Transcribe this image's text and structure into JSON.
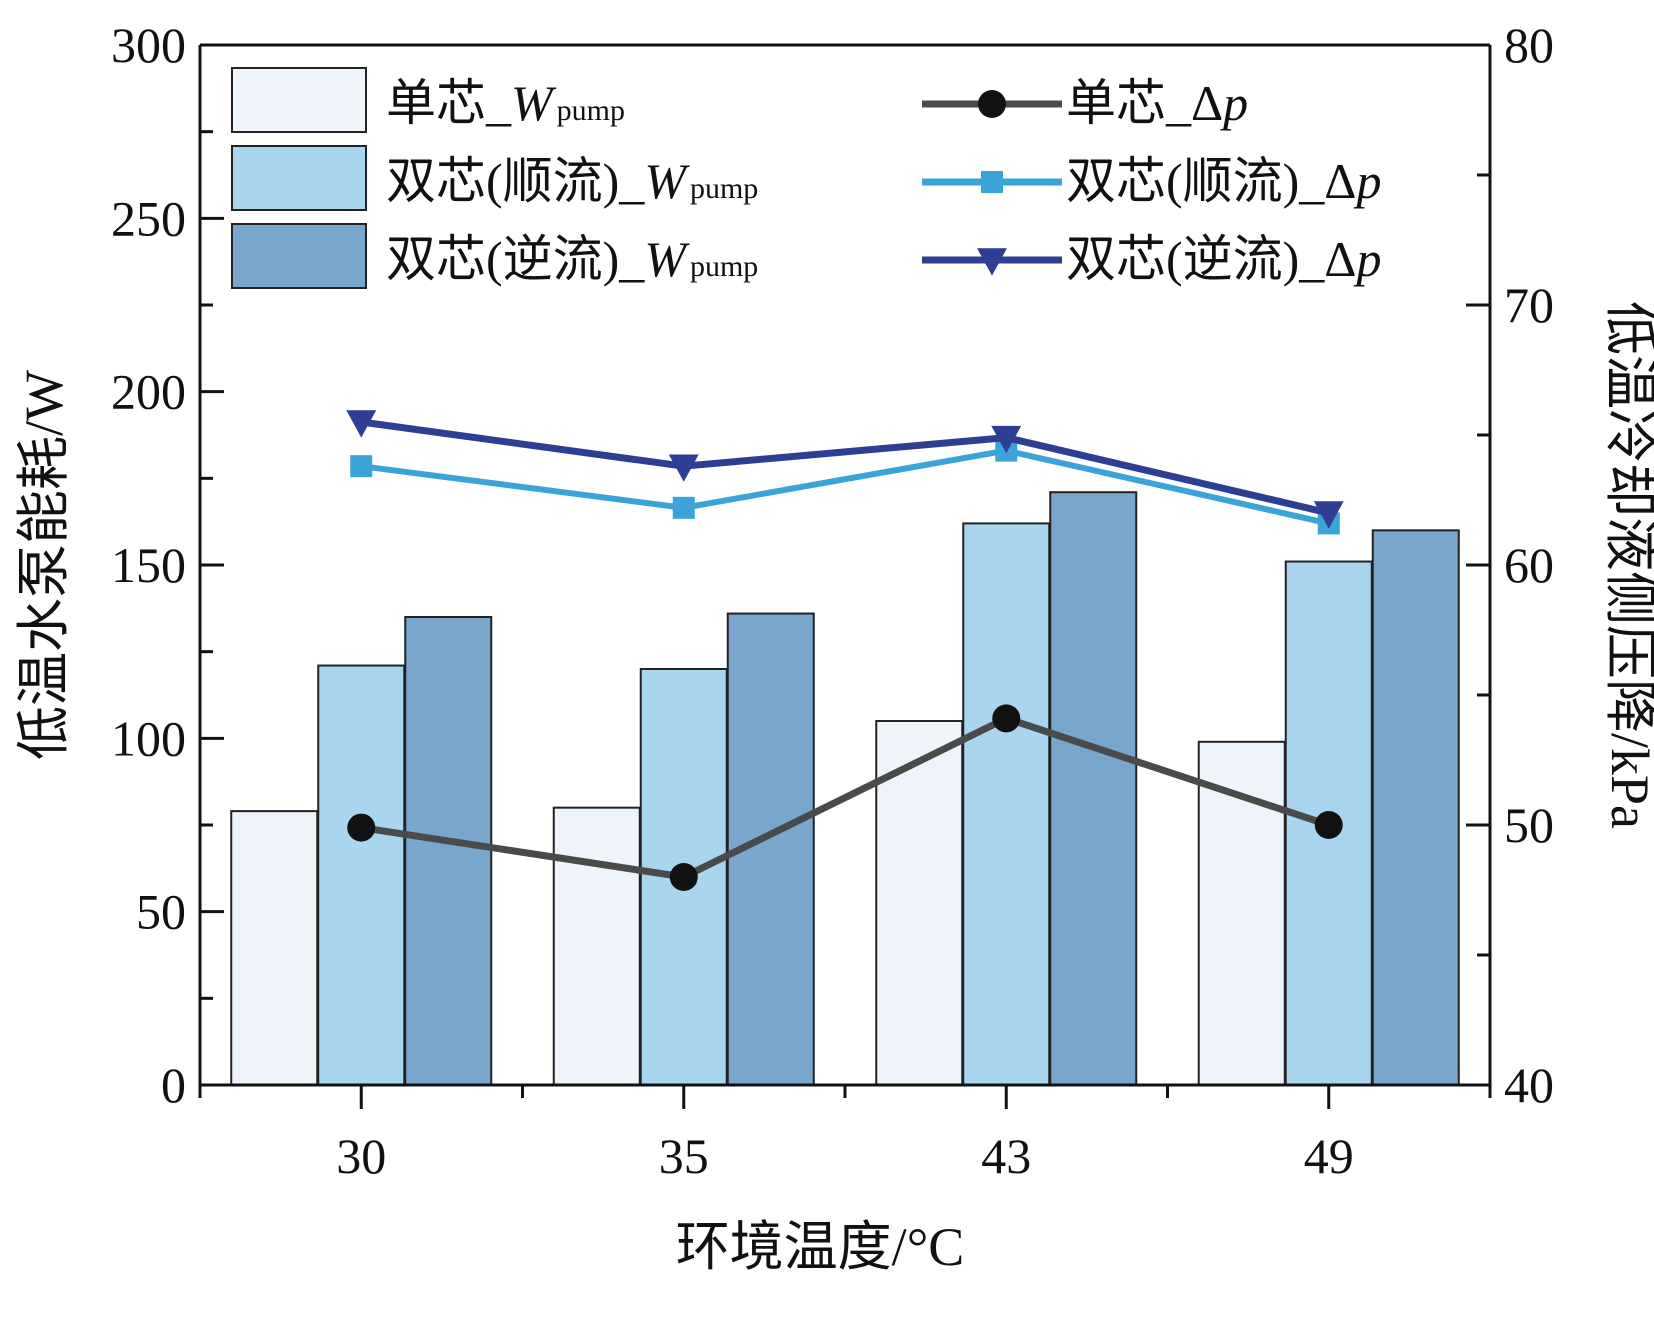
{
  "chart_data": {
    "type": "bar+line",
    "categories": [
      "30",
      "35",
      "43",
      "49"
    ],
    "xlabel": "环境温度/°C",
    "ylabel_left": "低温水泵能耗/W",
    "ylabel_right": "低温冷却液侧压降/kPa",
    "ylim_left": [
      0,
      300
    ],
    "yticks_left": [
      "0",
      "50",
      "100",
      "150",
      "200",
      "250",
      "300"
    ],
    "ylim_right": [
      40,
      80
    ],
    "yticks_right": [
      "40",
      "50",
      "60",
      "70",
      "80"
    ],
    "bar_series": [
      {
        "name": "单芯_W",
        "name_main": "单芯_",
        "name_var": "W",
        "name_sub": "pump",
        "color": "#eef4fa",
        "values": [
          79,
          80,
          105,
          99
        ]
      },
      {
        "name": "双芯(顺流)_W",
        "name_main": "双芯(顺流)_",
        "name_var": "W",
        "name_sub": "pump",
        "color": "#a9d5ee",
        "values": [
          121,
          120,
          162,
          151
        ]
      },
      {
        "name": "双芯(逆流)_W",
        "name_main": "双芯(逆流)_",
        "name_var": "W",
        "name_sub": "pump",
        "color": "#78a6cd",
        "values": [
          135,
          136,
          171,
          160
        ]
      }
    ],
    "line_series": [
      {
        "name": "单芯_Δp",
        "name_main": "单芯_Δ",
        "name_var": "p",
        "color": "#4a4a4a",
        "marker": "circle",
        "values": [
          49.9,
          48.0,
          54.1,
          50.0
        ]
      },
      {
        "name": "双芯(顺流)_Δp",
        "name_main": "双芯(顺流)_Δ",
        "name_var": "p",
        "color": "#3aa3d8",
        "marker": "square",
        "values": [
          63.8,
          62.2,
          64.4,
          61.6
        ]
      },
      {
        "name": "双芯(逆流)_Δp",
        "name_main": "双芯(逆流)_Δ",
        "name_var": "p",
        "color": "#2e3f93",
        "marker": "triangle-down",
        "values": [
          65.5,
          63.8,
          64.9,
          62.0
        ]
      }
    ]
  }
}
